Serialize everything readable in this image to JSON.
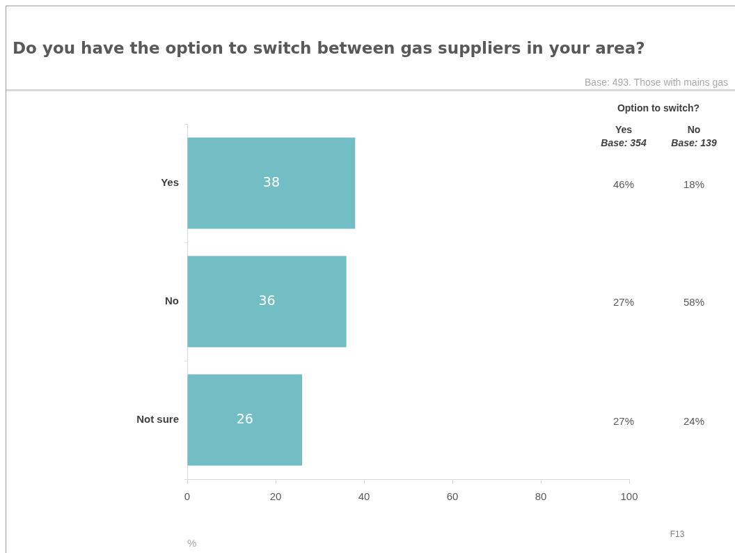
{
  "chart_data": {
    "type": "bar",
    "orientation": "horizontal",
    "title": "Do you have the option to switch between gas suppliers in your area?",
    "categories": [
      "Yes",
      "No",
      "Not sure"
    ],
    "values": [
      38,
      36,
      26
    ],
    "color": "#72bec4",
    "xlim": [
      0,
      100
    ],
    "xticks": [
      0,
      20,
      40,
      60,
      80,
      100
    ],
    "xlabel": "%",
    "data_labels": true,
    "grid": false,
    "legend": false,
    "annotations": [
      "Base: 493. Those with mains gas",
      "Option to switch?",
      "Yes",
      "No",
      "Base: 354",
      "Base: 139",
      "46%",
      "18%",
      "27%",
      "58%",
      "27%",
      "24%",
      "F13"
    ]
  }
}
